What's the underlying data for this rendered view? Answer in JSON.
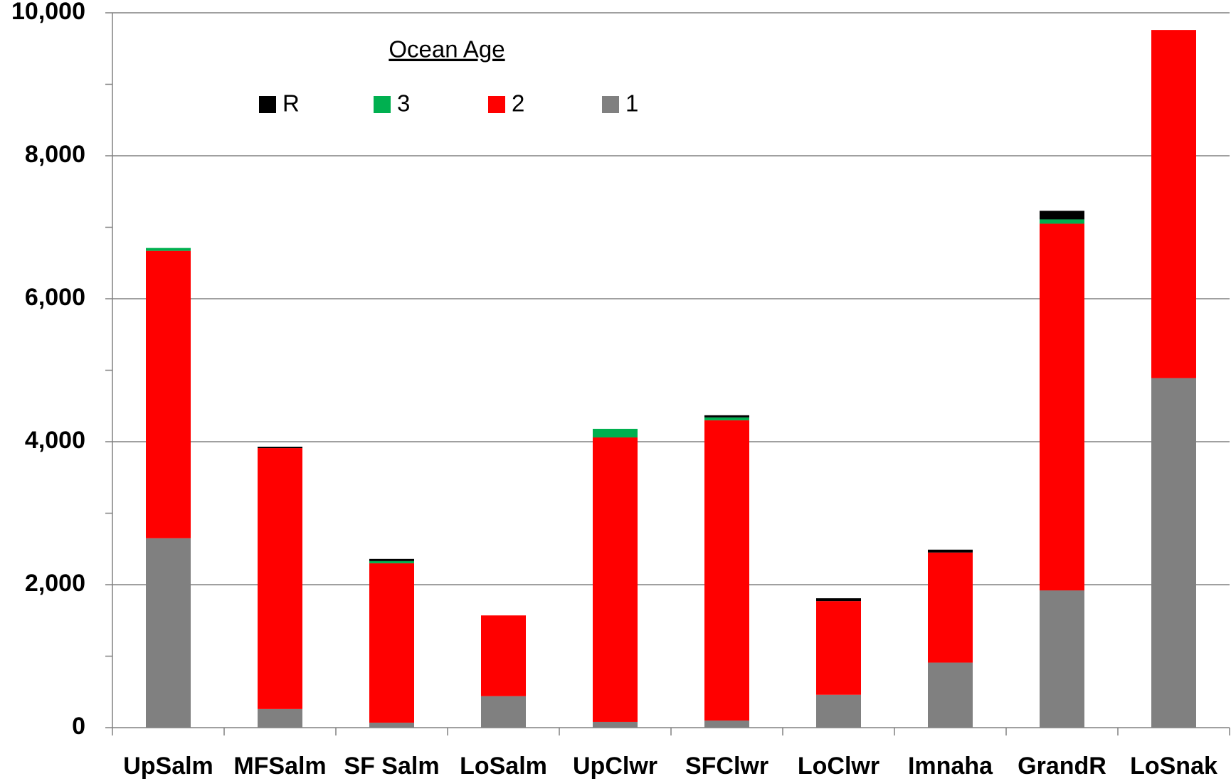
{
  "chart_data": {
    "type": "stacked_bar",
    "legend_title": "Ocean Age",
    "categories": [
      "UpSalm",
      "MFSalm",
      "SF Salm",
      "LoSalm",
      "UpClwr",
      "SFClwr",
      "LoClwr",
      "Imnaha",
      "GrandR",
      "LoSnak"
    ],
    "series": [
      {
        "name": "1",
        "color": "#808080",
        "values": [
          2650,
          260,
          70,
          440,
          80,
          100,
          460,
          910,
          1920,
          4890
        ]
      },
      {
        "name": "2",
        "color": "#ff0000",
        "values": [
          4020,
          3650,
          2230,
          1130,
          3980,
          4200,
          1310,
          1540,
          5130,
          4870
        ]
      },
      {
        "name": "3",
        "color": "#00b050",
        "values": [
          40,
          0,
          30,
          0,
          120,
          40,
          0,
          0,
          60,
          0
        ]
      },
      {
        "name": "R",
        "color": "#000000",
        "values": [
          0,
          20,
          30,
          0,
          0,
          30,
          40,
          40,
          120,
          0
        ]
      }
    ],
    "ylim": [
      0,
      10000
    ],
    "yticks": [
      0,
      {
        "value": 2000,
        "label": "2,000"
      },
      {
        "value": 4000,
        "label": "4,000"
      },
      {
        "value": 6000,
        "label": "6,000"
      },
      {
        "value": 8000,
        "label": "8,000"
      },
      {
        "value": 10000,
        "label": "10,000"
      }
    ],
    "grid": true
  }
}
